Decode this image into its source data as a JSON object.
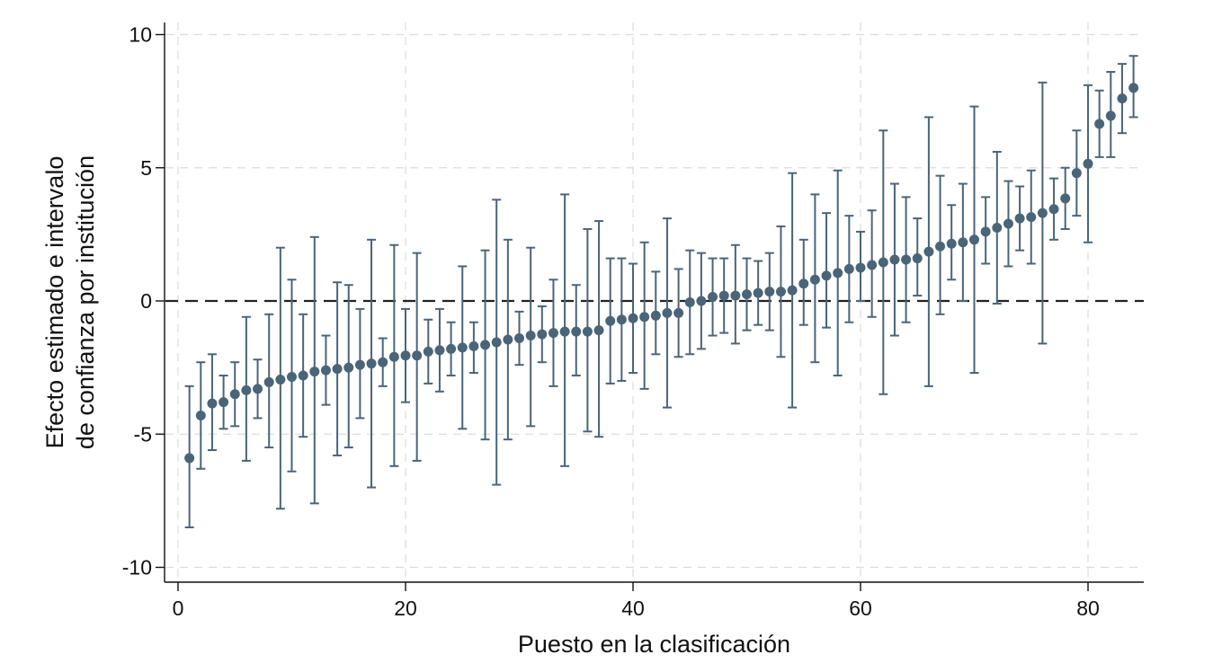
{
  "chart_data": {
    "type": "scatter",
    "xlabel": "Puesto en la clasificación",
    "ylabel_lines": [
      "Efecto estimado  e intervalo",
      "de confianza por institución"
    ],
    "xlim": [
      -1,
      85
    ],
    "ylim": [
      -10.5,
      10.5
    ],
    "xticks": [
      0,
      20,
      40,
      60,
      80
    ],
    "yticks": [
      10,
      5,
      0,
      -5,
      -10
    ],
    "ytick_labels": [
      "10",
      "5",
      "0",
      "-5",
      "-10"
    ],
    "grid": true,
    "reference_line_y": 0,
    "marker_color": "#4a6577",
    "series": [
      {
        "x": [
          1,
          2,
          3,
          4,
          5,
          6,
          7,
          8,
          9,
          10,
          11,
          12,
          13,
          14,
          15,
          16,
          17,
          18,
          19,
          20,
          21,
          22,
          23,
          24,
          25,
          26,
          27,
          28,
          29,
          30,
          31,
          32,
          33,
          34,
          35,
          36,
          37,
          38,
          39,
          40,
          41,
          42,
          43,
          44,
          45,
          46,
          47,
          48,
          49,
          50,
          51,
          52,
          53,
          54,
          55,
          56,
          57,
          58,
          59,
          60,
          61,
          62,
          63,
          64,
          65,
          66,
          67,
          68,
          69,
          70,
          71,
          72,
          73,
          74,
          75,
          76,
          77,
          78,
          79,
          80,
          81,
          82,
          83,
          84
        ],
        "y": [
          -5.9,
          -4.3,
          -3.85,
          -3.8,
          -3.5,
          -3.35,
          -3.3,
          -3.05,
          -2.95,
          -2.85,
          -2.8,
          -2.65,
          -2.6,
          -2.55,
          -2.5,
          -2.4,
          -2.35,
          -2.3,
          -2.1,
          -2.05,
          -2.05,
          -1.9,
          -1.85,
          -1.8,
          -1.75,
          -1.7,
          -1.65,
          -1.55,
          -1.45,
          -1.4,
          -1.3,
          -1.25,
          -1.2,
          -1.15,
          -1.15,
          -1.15,
          -1.1,
          -0.75,
          -0.7,
          -0.65,
          -0.6,
          -0.55,
          -0.45,
          -0.45,
          -0.05,
          0,
          0.15,
          0.2,
          0.2,
          0.25,
          0.3,
          0.35,
          0.35,
          0.4,
          0.65,
          0.8,
          0.95,
          1.05,
          1.2,
          1.25,
          1.35,
          1.45,
          1.55,
          1.55,
          1.6,
          1.85,
          2.05,
          2.15,
          2.2,
          2.3,
          2.6,
          2.75,
          2.9,
          3.1,
          3.15,
          3.3,
          3.45,
          3.85,
          4.8,
          5.15,
          6.65,
          6.95,
          7.6,
          8.0
        ],
        "lower": [
          -8.5,
          -6.3,
          -5.6,
          -4.8,
          -4.7,
          -6.0,
          -4.4,
          -5.5,
          -7.8,
          -6.4,
          -5.1,
          -7.6,
          -3.9,
          -5.8,
          -5.5,
          -4.4,
          -7.0,
          -3.2,
          -6.2,
          -3.8,
          -6.0,
          -3.1,
          -3.4,
          -2.8,
          -4.8,
          -2.7,
          -5.2,
          -6.9,
          -5.2,
          -2.4,
          -4.7,
          -2.3,
          -3.2,
          -6.2,
          -2.8,
          -4.9,
          -5.1,
          -3.1,
          -3.0,
          -2.7,
          -3.3,
          -2.0,
          -4.0,
          -2.1,
          -2.0,
          -1.8,
          -1.3,
          -1.2,
          -1.6,
          -1.1,
          -0.9,
          -1.1,
          -2.1,
          -4.0,
          -0.9,
          -2.3,
          -1.0,
          -2.8,
          -0.8,
          0.0,
          -0.6,
          -3.5,
          -1.3,
          -0.8,
          0.2,
          -3.2,
          -0.5,
          0.8,
          0.0,
          -2.7,
          1.4,
          -0.1,
          1.3,
          1.9,
          1.4,
          -1.6,
          2.3,
          2.7,
          3.2,
          2.2,
          5.4,
          5.4,
          6.3,
          6.9
        ],
        "upper": [
          -3.2,
          -2.3,
          -2.0,
          -2.8,
          -2.3,
          -0.6,
          -2.2,
          -0.5,
          2.0,
          0.8,
          -0.5,
          2.4,
          -1.3,
          0.7,
          0.6,
          -0.3,
          2.3,
          -1.4,
          2.1,
          -0.3,
          1.8,
          -0.7,
          -0.3,
          -0.8,
          1.3,
          -0.8,
          1.9,
          3.8,
          2.3,
          -0.4,
          2.0,
          -0.2,
          0.8,
          4.0,
          0.6,
          2.7,
          3.0,
          1.6,
          1.6,
          1.4,
          2.2,
          1.1,
          3.1,
          1.2,
          1.9,
          1.8,
          1.6,
          1.6,
          2.1,
          1.6,
          1.5,
          1.8,
          2.8,
          4.8,
          2.3,
          4.0,
          3.3,
          4.9,
          3.2,
          2.6,
          3.4,
          6.4,
          4.4,
          3.9,
          3.1,
          6.9,
          4.7,
          3.6,
          4.4,
          7.3,
          3.9,
          5.6,
          4.5,
          4.3,
          4.9,
          8.2,
          4.6,
          5.0,
          6.4,
          8.1,
          7.9,
          8.6,
          8.9,
          9.2
        ]
      }
    ]
  }
}
